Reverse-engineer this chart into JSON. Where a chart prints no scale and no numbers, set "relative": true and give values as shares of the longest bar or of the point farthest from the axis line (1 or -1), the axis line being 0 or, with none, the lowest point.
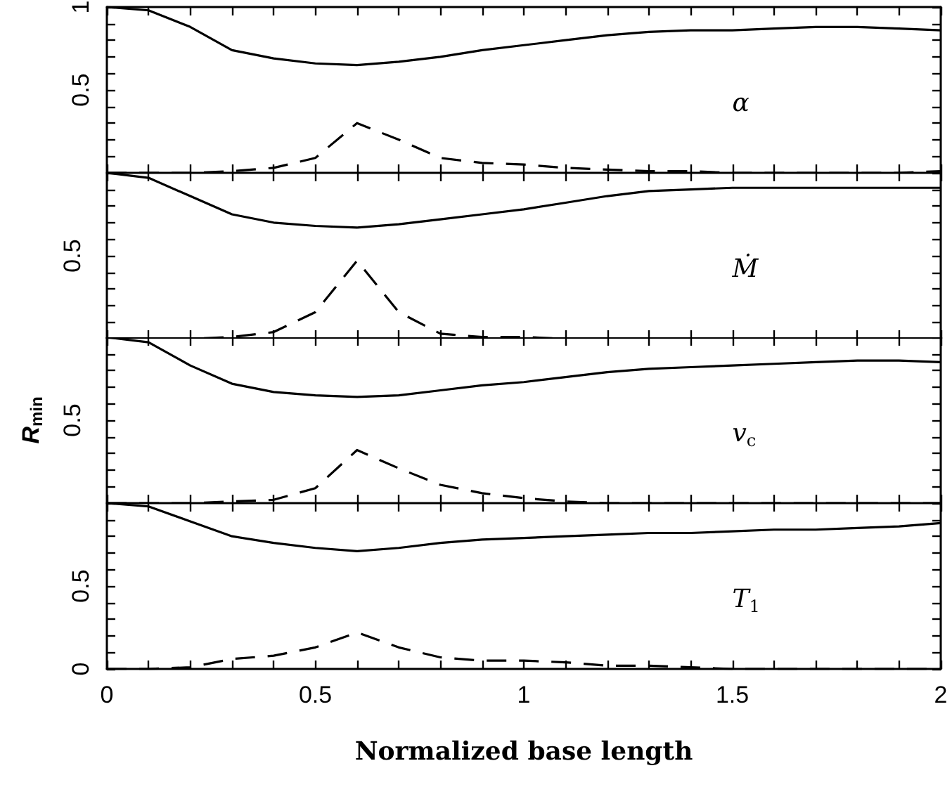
{
  "chart_data": [
    {
      "type": "line",
      "annotations": [
        "α"
      ],
      "x": [
        0,
        0.1,
        0.2,
        0.3,
        0.4,
        0.5,
        0.6,
        0.7,
        0.8,
        0.9,
        1.0,
        1.1,
        1.2,
        1.3,
        1.4,
        1.5,
        1.6,
        1.7,
        1.8,
        1.9,
        2.0
      ],
      "series": [
        {
          "color": "#000000",
          "line_style": "solid",
          "values": [
            1.0,
            0.98,
            0.88,
            0.74,
            0.69,
            0.66,
            0.65,
            0.67,
            0.7,
            0.74,
            0.77,
            0.8,
            0.83,
            0.85,
            0.86,
            0.86,
            0.87,
            0.88,
            0.88,
            0.87,
            0.86
          ]
        },
        {
          "color": "#000000",
          "line_style": "dashed",
          "values": [
            0,
            0,
            0,
            0.01,
            0.03,
            0.09,
            0.3,
            0.2,
            0.09,
            0.06,
            0.05,
            0.03,
            0.02,
            0.01,
            0.01,
            0,
            0,
            0,
            0,
            0,
            0.01
          ]
        }
      ],
      "xlim": [
        0,
        2
      ],
      "ylim": [
        0,
        1
      ],
      "xticks": [
        0,
        {
          "value": 0.1,
          "label": null
        },
        {
          "value": 0.2,
          "label": null
        },
        {
          "value": 0.3,
          "label": null
        },
        {
          "value": 0.4,
          "label": null
        },
        0.5,
        {
          "value": 0.6,
          "label": null
        },
        {
          "value": 0.7,
          "label": null
        },
        {
          "value": 0.8,
          "label": null
        },
        {
          "value": 0.9,
          "label": null
        },
        1,
        {
          "value": 1.1,
          "label": null
        },
        {
          "value": 1.2,
          "label": null
        },
        {
          "value": 1.3,
          "label": null
        },
        {
          "value": 1.4,
          "label": null
        },
        1.5,
        {
          "value": 1.6,
          "label": null
        },
        {
          "value": 1.7,
          "label": null
        },
        {
          "value": 1.8,
          "label": null
        },
        {
          "value": 1.9,
          "label": null
        },
        2
      ],
      "yticks": [
        {
          "value": 0,
          "label": null
        },
        {
          "value": 0.1,
          "label": null
        },
        {
          "value": 0.2,
          "label": null
        },
        {
          "value": 0.3,
          "label": null
        },
        {
          "value": 0.4,
          "label": null
        },
        0.5,
        {
          "value": 0.6,
          "label": null
        },
        {
          "value": 0.7,
          "label": null
        },
        {
          "value": 0.8,
          "label": null
        },
        {
          "value": 0.9,
          "label": null
        },
        1
      ],
      "tick_labels": "y",
      "marker": "none"
    },
    {
      "type": "line",
      "relative": true,
      "annotations": [
        "0.5",
        "Ṁ"
      ],
      "x": [
        0,
        0.1,
        0.2,
        0.3,
        0.4,
        0.5,
        0.6,
        0.7,
        0.8,
        0.9,
        1.0,
        1.1,
        1.2,
        1.3,
        1.4,
        1.5,
        1.6,
        1.7,
        1.8,
        1.9,
        2.0
      ],
      "series": [
        {
          "color": "#000000",
          "line_style": "solid",
          "values": [
            1.0,
            0.97,
            0.86,
            0.75,
            0.7,
            0.68,
            0.67,
            0.69,
            0.72,
            0.75,
            0.78,
            0.82,
            0.86,
            0.89,
            0.9,
            0.91,
            0.91,
            0.91,
            0.91,
            0.91,
            0.91
          ]
        },
        {
          "color": "#000000",
          "line_style": "dashed",
          "values": [
            0,
            0,
            0,
            0.01,
            0.04,
            0.16,
            0.47,
            0.16,
            0.03,
            0.01,
            0.01,
            0,
            0,
            0,
            0,
            0,
            0,
            0,
            0,
            0,
            0
          ]
        }
      ],
      "xlim": [
        0,
        2
      ],
      "xticks": [
        0,
        {
          "value": 0.1,
          "label": null
        },
        {
          "value": 0.2,
          "label": null
        },
        {
          "value": 0.3,
          "label": null
        },
        {
          "value": 0.4,
          "label": null
        },
        0.5,
        {
          "value": 0.6,
          "label": null
        },
        {
          "value": 0.7,
          "label": null
        },
        {
          "value": 0.8,
          "label": null
        },
        {
          "value": 0.9,
          "label": null
        },
        1,
        {
          "value": 1.1,
          "label": null
        },
        {
          "value": 1.2,
          "label": null
        },
        {
          "value": 1.3,
          "label": null
        },
        {
          "value": 1.4,
          "label": null
        },
        1.5,
        {
          "value": 1.6,
          "label": null
        },
        {
          "value": 1.7,
          "label": null
        },
        {
          "value": 1.8,
          "label": null
        },
        {
          "value": 1.9,
          "label": null
        },
        2
      ],
      "tick_labels": false,
      "marker": "none"
    },
    {
      "type": "line",
      "relative": true,
      "ylabel": "R$_{min}$",
      "annotations": [
        "0.5",
        "v$_{c}$"
      ],
      "x": [
        0,
        0.1,
        0.2,
        0.3,
        0.4,
        0.5,
        0.6,
        0.7,
        0.8,
        0.9,
        1.0,
        1.1,
        1.2,
        1.3,
        1.4,
        1.5,
        1.6,
        1.7,
        1.8,
        1.9,
        2.0
      ],
      "series": [
        {
          "color": "#000000",
          "line_style": "solid",
          "values": [
            1.0,
            0.97,
            0.83,
            0.72,
            0.67,
            0.65,
            0.64,
            0.65,
            0.68,
            0.71,
            0.73,
            0.76,
            0.79,
            0.81,
            0.82,
            0.83,
            0.84,
            0.85,
            0.86,
            0.86,
            0.85
          ]
        },
        {
          "color": "#000000",
          "line_style": "dashed",
          "values": [
            0,
            0,
            0,
            0.01,
            0.02,
            0.09,
            0.32,
            0.21,
            0.11,
            0.06,
            0.03,
            0.01,
            0,
            0,
            0,
            0,
            0,
            0,
            0,
            0,
            0
          ]
        }
      ],
      "xlim": [
        0,
        2
      ],
      "xticks": [
        0,
        {
          "value": 0.1,
          "label": null
        },
        {
          "value": 0.2,
          "label": null
        },
        {
          "value": 0.3,
          "label": null
        },
        {
          "value": 0.4,
          "label": null
        },
        0.5,
        {
          "value": 0.6,
          "label": null
        },
        {
          "value": 0.7,
          "label": null
        },
        {
          "value": 0.8,
          "label": null
        },
        {
          "value": 0.9,
          "label": null
        },
        1,
        {
          "value": 1.1,
          "label": null
        },
        {
          "value": 1.2,
          "label": null
        },
        {
          "value": 1.3,
          "label": null
        },
        {
          "value": 1.4,
          "label": null
        },
        1.5,
        {
          "value": 1.6,
          "label": null
        },
        {
          "value": 1.7,
          "label": null
        },
        {
          "value": 1.8,
          "label": null
        },
        {
          "value": 1.9,
          "label": null
        },
        2
      ],
      "tick_labels": false,
      "marker": "none"
    },
    {
      "type": "line",
      "xlabel": "Normalized base length",
      "annotations": [
        "T$_{1}$"
      ],
      "x": [
        0,
        0.1,
        0.2,
        0.3,
        0.4,
        0.5,
        0.6,
        0.7,
        0.8,
        0.9,
        1.0,
        1.1,
        1.2,
        1.3,
        1.4,
        1.5,
        1.6,
        1.7,
        1.8,
        1.9,
        2.0
      ],
      "series": [
        {
          "color": "#000000",
          "line_style": "solid",
          "values": [
            1.0,
            0.98,
            0.89,
            0.8,
            0.76,
            0.73,
            0.71,
            0.73,
            0.76,
            0.78,
            0.79,
            0.8,
            0.81,
            0.82,
            0.82,
            0.83,
            0.84,
            0.84,
            0.85,
            0.86,
            0.88
          ]
        },
        {
          "color": "#000000",
          "line_style": "dashed",
          "values": [
            0,
            0,
            0.01,
            0.06,
            0.08,
            0.13,
            0.22,
            0.13,
            0.07,
            0.05,
            0.05,
            0.04,
            0.02,
            0.02,
            0.01,
            0,
            0,
            0,
            0,
            0,
            0
          ]
        }
      ],
      "xlim": [
        0,
        2
      ],
      "ylim": [
        0,
        1
      ],
      "xticks": [
        0,
        {
          "value": 0.1,
          "label": null
        },
        {
          "value": 0.2,
          "label": null
        },
        {
          "value": 0.3,
          "label": null
        },
        {
          "value": 0.4,
          "label": null
        },
        0.5,
        {
          "value": 0.6,
          "label": null
        },
        {
          "value": 0.7,
          "label": null
        },
        {
          "value": 0.8,
          "label": null
        },
        {
          "value": 0.9,
          "label": null
        },
        1,
        {
          "value": 1.1,
          "label": null
        },
        {
          "value": 1.2,
          "label": null
        },
        {
          "value": 1.3,
          "label": null
        },
        {
          "value": 1.4,
          "label": null
        },
        1.5,
        {
          "value": 1.6,
          "label": null
        },
        {
          "value": 1.7,
          "label": null
        },
        {
          "value": 1.8,
          "label": null
        },
        {
          "value": 1.9,
          "label": null
        },
        2
      ],
      "yticks": [
        0,
        {
          "value": 0.1,
          "label": null
        },
        {
          "value": 0.2,
          "label": null
        },
        {
          "value": 0.3,
          "label": null
        },
        {
          "value": 0.4,
          "label": null
        },
        0.5,
        {
          "value": 0.6,
          "label": null
        },
        {
          "value": 0.7,
          "label": null
        },
        {
          "value": 0.8,
          "label": null
        },
        {
          "value": 0.9,
          "label": null
        },
        {
          "value": 1,
          "label": null
        }
      ],
      "marker": "none"
    }
  ]
}
